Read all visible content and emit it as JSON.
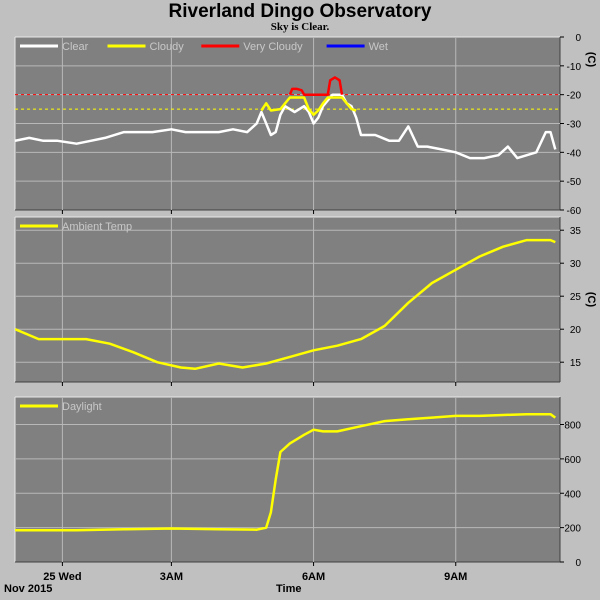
{
  "title": "Riverland Dingo Observatory",
  "subtitle": "Sky is Clear.",
  "footer": {
    "date_label": "Nov 2015",
    "axis_label": "Time"
  },
  "x_ticks": [
    {
      "hour": 0.7,
      "label": "25 Wed"
    },
    {
      "hour": 3.0,
      "label": "3AM"
    },
    {
      "hour": 6.0,
      "label": "6AM"
    },
    {
      "hour": 9.0,
      "label": "9AM"
    }
  ],
  "colors": {
    "plot_bg": "#808080",
    "page_bg": "#c0c0c0",
    "grid": "#b8b8b8",
    "clear": "#ffffff",
    "cloudy": "#ffff00",
    "very_cloudy": "#ff0000",
    "wet": "#0000ff"
  },
  "chart_data": [
    {
      "type": "line",
      "x_range_hours": [
        -0.3,
        11.2
      ],
      "ylabel": "(C)",
      "ylim": [
        -60,
        0
      ],
      "yticks": [
        0,
        -10,
        -20,
        -30,
        -40,
        -50,
        -60
      ],
      "grid": true,
      "legend_position": "top-left",
      "legend": [
        {
          "label": "Clear",
          "color": "#ffffff"
        },
        {
          "label": "Cloudy",
          "color": "#ffff00"
        },
        {
          "label": "Very Cloudy",
          "color": "#ff0000"
        },
        {
          "label": "Wet",
          "color": "#0000ff"
        }
      ],
      "thresholds": [
        {
          "value": -20,
          "color": "#ff0000"
        },
        {
          "value": -25,
          "color": "#ffff00"
        }
      ],
      "series": [
        {
          "name": "Clear",
          "color": "#ffffff",
          "x": [
            -0.3,
            0.0,
            0.3,
            0.6,
            1.0,
            1.3,
            1.6,
            2.0,
            2.3,
            2.6,
            3.0,
            3.3,
            3.6,
            4.0,
            4.3,
            4.6,
            4.8,
            4.9,
            5.0,
            5.1,
            5.2,
            5.3,
            5.4,
            5.6,
            5.8,
            5.9,
            6.0,
            6.1,
            6.2,
            6.4,
            6.6,
            6.7,
            6.8,
            6.9,
            7.0,
            7.3,
            7.6,
            7.8,
            8.0,
            8.2,
            8.4,
            8.7,
            9.0,
            9.3,
            9.6,
            9.9,
            10.1,
            10.3,
            10.5,
            10.7,
            10.9,
            11.0,
            11.1
          ],
          "y": [
            -36,
            -35,
            -36,
            -36,
            -37,
            -36,
            -35,
            -33,
            -33,
            -33,
            -32,
            -33,
            -33,
            -33,
            -32,
            -33,
            -30,
            -26,
            -30,
            -34,
            -33,
            -27,
            -24,
            -26,
            -24,
            -26,
            -30,
            -28,
            -24,
            -20,
            -20,
            -23,
            -24,
            -28,
            -34,
            -34,
            -36,
            -36,
            -31,
            -38,
            -38,
            -39,
            -40,
            -42,
            -42,
            -41,
            -38,
            -42,
            -41,
            -40,
            -33,
            -33,
            -39
          ]
        },
        {
          "name": "Cloudy",
          "color": "#ffff00",
          "x": [
            4.9,
            5.0,
            5.1,
            5.3,
            5.4,
            5.5,
            5.8,
            5.9,
            6.0,
            6.1,
            6.2,
            6.3,
            6.6,
            6.7,
            6.8,
            6.9
          ],
          "y": [
            -25.5,
            -23,
            -25.5,
            -25,
            -23,
            -21,
            -21,
            -25,
            -27,
            -25.5,
            -23,
            -21,
            -21,
            -23,
            -25,
            -25.5
          ]
        },
        {
          "name": "Very Cloudy",
          "color": "#ff0000",
          "x": [
            5.5,
            5.55,
            5.65,
            5.75,
            5.8,
            6.3,
            6.35,
            6.45,
            6.55,
            6.6
          ],
          "y": [
            -20,
            -18,
            -18,
            -18.5,
            -20,
            -20,
            -15,
            -14,
            -15,
            -20
          ]
        },
        {
          "name": "Wet",
          "color": "#0000ff",
          "x": [],
          "y": []
        }
      ]
    },
    {
      "type": "line",
      "x_range_hours": [
        -0.3,
        11.2
      ],
      "ylabel": "(C)",
      "ylim": [
        12,
        37
      ],
      "yticks": [
        15,
        20,
        25,
        30,
        35
      ],
      "grid": true,
      "legend_position": "top-left",
      "legend": [
        {
          "label": "Ambient Temp",
          "color": "#ffff00"
        }
      ],
      "series": [
        {
          "name": "Ambient Temp",
          "color": "#ffff00",
          "x": [
            -0.3,
            0.2,
            0.7,
            1.2,
            1.7,
            2.2,
            2.7,
            3.2,
            3.5,
            4.0,
            4.5,
            5.0,
            5.5,
            6.0,
            6.5,
            7.0,
            7.5,
            8.0,
            8.5,
            9.0,
            9.5,
            10.0,
            10.5,
            11.0,
            11.1
          ],
          "y": [
            20,
            18.5,
            18.5,
            18.5,
            17.8,
            16.5,
            15,
            14.2,
            14.0,
            14.8,
            14.2,
            14.8,
            15.8,
            16.8,
            17.5,
            18.5,
            20.5,
            24,
            27,
            29,
            31,
            32.5,
            33.5,
            33.5,
            33.2
          ]
        }
      ]
    },
    {
      "type": "line",
      "x_range_hours": [
        -0.3,
        11.2
      ],
      "ylabel": "",
      "ylim": [
        0,
        960
      ],
      "yticks": [
        0,
        200,
        400,
        600,
        800
      ],
      "grid": true,
      "legend_position": "top-left",
      "legend": [
        {
          "label": "Daylight",
          "color": "#ffff00"
        }
      ],
      "series": [
        {
          "name": "Daylight",
          "color": "#ffff00",
          "x": [
            -0.3,
            1.0,
            2.0,
            3.0,
            4.0,
            4.8,
            5.0,
            5.1,
            5.2,
            5.3,
            5.5,
            5.8,
            6.0,
            6.2,
            6.5,
            7.0,
            7.5,
            8.0,
            8.5,
            9.0,
            9.5,
            10.0,
            10.5,
            11.0,
            11.1
          ],
          "y": [
            185,
            185,
            190,
            195,
            190,
            188,
            200,
            290,
            480,
            640,
            690,
            740,
            770,
            760,
            760,
            790,
            820,
            830,
            840,
            850,
            850,
            855,
            860,
            860,
            840
          ]
        }
      ]
    }
  ]
}
